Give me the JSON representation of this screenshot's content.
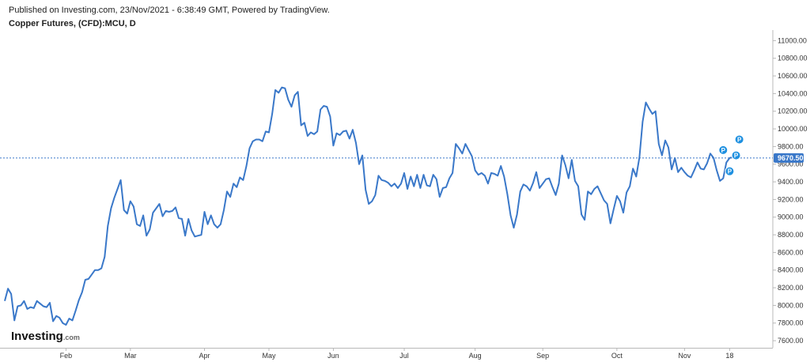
{
  "header": {
    "published": "Published on Investing.com, 23/Nov/2021 - 6:38:49 GMT, Powered by TradingView.",
    "symbol": "Copper Futures, (CFD):MCU, D"
  },
  "logo": {
    "text": "Investing",
    "suffix": ".com"
  },
  "colors": {
    "line": "#3a78c9",
    "priceLine": "#3a78c9",
    "marker": "#1e90e0",
    "axis": "#b8b8b8"
  },
  "chart_data": {
    "type": "line",
    "title": "Copper Futures, (CFD):MCU, D",
    "ylim": [
      7520,
      11120
    ],
    "y_ticks": [
      "7600.00",
      "7800.00",
      "8000.00",
      "8200.00",
      "8400.00",
      "8600.00",
      "8800.00",
      "9000.00",
      "9200.00",
      "9400.00",
      "9600.00",
      "9800.00",
      "10000.00",
      "10200.00",
      "10400.00",
      "10600.00",
      "10800.00",
      "11000.00"
    ],
    "y_tick_values": [
      7600,
      7800,
      8000,
      8200,
      8400,
      8600,
      8800,
      9000,
      9200,
      9400,
      9600,
      9800,
      10000,
      10200,
      10400,
      10600,
      10800,
      11000
    ],
    "x_ticks": [
      "Feb",
      "Mar",
      "Apr",
      "May",
      "Jun",
      "Jul",
      "Aug",
      "Sep",
      "Oct",
      "Nov",
      "18"
    ],
    "x_tick_index": [
      19,
      39,
      62,
      82,
      102,
      124,
      146,
      167,
      190,
      211,
      225
    ],
    "x_range": [
      0,
      233
    ],
    "last_price": 9670.5,
    "last_price_label": "9670.50",
    "markers": [
      {
        "label": "P",
        "index": 223,
        "value": 9760
      },
      {
        "label": "P",
        "index": 225,
        "value": 9520
      },
      {
        "label": "P",
        "index": 227,
        "value": 9700
      },
      {
        "label": "P",
        "index": 228,
        "value": 9880
      }
    ],
    "series": [
      {
        "values": [
          8050,
          8190,
          8130,
          7830,
          7990,
          8000,
          8050,
          7960,
          7980,
          7970,
          8050,
          8020,
          7990,
          7980,
          8030,
          7820,
          7880,
          7860,
          7800,
          7780,
          7850,
          7830,
          7940,
          8060,
          8150,
          8290,
          8300,
          8350,
          8400,
          8400,
          8420,
          8550,
          8900,
          9100,
          9220,
          9320,
          9420,
          9080,
          9040,
          9180,
          9120,
          8920,
          8900,
          9020,
          8790,
          8860,
          9050,
          9100,
          9150,
          9010,
          9070,
          9060,
          9070,
          9110,
          8990,
          8980,
          8790,
          8980,
          8850,
          8780,
          8790,
          8800,
          9060,
          8920,
          9020,
          8920,
          8880,
          8920,
          9080,
          9290,
          9230,
          9380,
          9340,
          9450,
          9420,
          9580,
          9780,
          9860,
          9880,
          9880,
          9860,
          9970,
          9960,
          10170,
          10440,
          10410,
          10470,
          10460,
          10330,
          10250,
          10380,
          10420,
          10040,
          10070,
          9920,
          9960,
          9940,
          9970,
          10220,
          10260,
          10250,
          10140,
          9810,
          9950,
          9930,
          9970,
          9980,
          9890,
          9990,
          9840,
          9600,
          9700,
          9310,
          9150,
          9180,
          9250,
          9470,
          9420,
          9410,
          9390,
          9350,
          9380,
          9330,
          9380,
          9500,
          9320,
          9460,
          9350,
          9480,
          9330,
          9480,
          9360,
          9350,
          9480,
          9430,
          9230,
          9330,
          9340,
          9440,
          9500,
          9830,
          9780,
          9720,
          9830,
          9760,
          9690,
          9530,
          9480,
          9500,
          9470,
          9380,
          9500,
          9490,
          9470,
          9580,
          9460,
          9260,
          9020,
          8880,
          9030,
          9290,
          9370,
          9350,
          9300,
          9390,
          9510,
          9330,
          9380,
          9430,
          9440,
          9340,
          9250,
          9380,
          9700,
          9590,
          9440,
          9650,
          9410,
          9350,
          9030,
          8970,
          9290,
          9260,
          9320,
          9350,
          9270,
          9190,
          9150,
          8930,
          9090,
          9240,
          9180,
          9050,
          9280,
          9350,
          9550,
          9460,
          9680,
          10080,
          10300,
          10230,
          10170,
          10200,
          9830,
          9700,
          9870,
          9790,
          9540,
          9670,
          9510,
          9560,
          9510,
          9470,
          9450,
          9530,
          9620,
          9550,
          9540,
          9610,
          9720,
          9670,
          9530,
          9410,
          9440,
          9620,
          9670,
          9680,
          9690
        ]
      }
    ]
  }
}
